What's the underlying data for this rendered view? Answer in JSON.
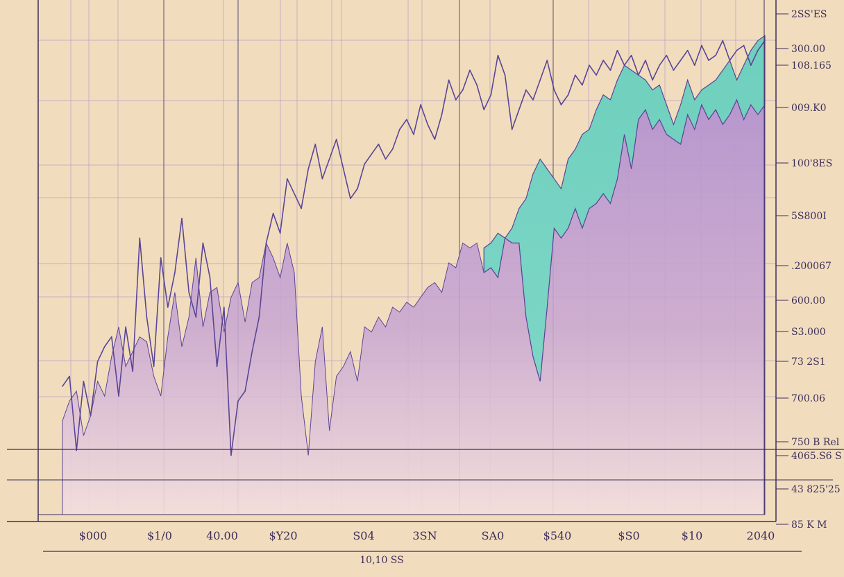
{
  "chart_data": {
    "type": "area",
    "title": "",
    "xlabel": "10,10 SS",
    "ylabel": "",
    "grid": true,
    "legend": "none",
    "colors": {
      "background": "#f1dcbe",
      "grid": "#b9a3c5",
      "axis": "#3c2e5a",
      "purple_area": "#b493cf",
      "pink_fade": "#f3dede",
      "teal_area": "#6fcfbd",
      "line": "#5a4596"
    },
    "y_tick_labels": [
      "2SS'ES",
      "300.00",
      "108.165",
      "009.K0",
      "100'8ES",
      "5S800I",
      ".200067",
      "600.00",
      "S3.000",
      "73 2S1",
      "700.06",
      "750 B Rel",
      "4065.S6 S",
      "43 825'25",
      "85 K M"
    ],
    "x_tick_labels": [
      "$000",
      "$1/0",
      "40.00",
      "$Y20",
      "S04",
      "3SN",
      "SA0",
      "$540",
      "$S0",
      "$10",
      "2040"
    ],
    "series": [
      {
        "name": "",
        "style": "area-purple",
        "x": [
          0,
          1,
          2,
          3,
          4,
          5,
          6,
          7,
          8,
          9,
          10,
          11,
          12,
          13,
          14,
          15,
          16,
          17,
          18,
          19,
          20,
          21,
          22,
          23,
          24,
          25,
          26,
          27,
          28,
          29,
          30,
          31,
          32,
          33,
          34,
          35,
          36,
          37,
          38,
          39,
          40,
          41,
          42,
          43,
          44,
          45,
          46,
          47,
          48,
          49,
          50,
          51,
          52,
          53,
          54,
          55,
          56,
          57,
          58,
          59,
          60,
          61,
          62,
          63,
          64,
          65,
          66,
          67,
          68,
          69,
          70,
          71,
          72,
          73,
          74,
          75,
          76,
          77,
          78,
          79,
          80,
          81,
          82,
          83,
          84,
          85,
          86,
          87,
          88,
          89,
          90,
          91,
          92,
          93,
          94,
          95,
          96,
          97,
          98,
          99,
          100
        ],
        "values": [
          19,
          23,
          25,
          16,
          20,
          27,
          24,
          32,
          38,
          30,
          33,
          36,
          35,
          28,
          24,
          36,
          45,
          34,
          40,
          52,
          38,
          45,
          46,
          37,
          44,
          47,
          39,
          47,
          48,
          55,
          52,
          48,
          55,
          49,
          24,
          12,
          31,
          38,
          17,
          28,
          30,
          33,
          27,
          38,
          37,
          40,
          38,
          42,
          41,
          43,
          42,
          44,
          46,
          47,
          45,
          51,
          50,
          55,
          54,
          55,
          49,
          50,
          48,
          56,
          55,
          55,
          40,
          32,
          27,
          42,
          58,
          56,
          58,
          62,
          58,
          62,
          63,
          65,
          63,
          68,
          77,
          70,
          80,
          82,
          78,
          80,
          77,
          76,
          75,
          81,
          78,
          83,
          80,
          82,
          79,
          81,
          84,
          80,
          83,
          81,
          83
        ]
      },
      {
        "name": "",
        "style": "area-teal",
        "x": [
          60,
          61,
          62,
          63,
          64,
          65,
          66,
          67,
          68,
          69,
          70,
          71,
          72,
          73,
          74,
          75,
          76,
          77,
          78,
          79,
          80,
          81,
          82,
          83,
          84,
          85,
          86,
          87,
          88,
          89,
          90,
          91,
          92,
          93,
          94,
          95,
          96,
          97,
          98,
          99,
          100
        ],
        "values": [
          54,
          55,
          57,
          56,
          58,
          62,
          64,
          69,
          72,
          70,
          68,
          66,
          72,
          74,
          77,
          78,
          82,
          85,
          84,
          88,
          91,
          90,
          89,
          88,
          86,
          87,
          83,
          79,
          83,
          88,
          84,
          86,
          87,
          88,
          90,
          92,
          88,
          91,
          94,
          96,
          97
        ]
      },
      {
        "name": "",
        "style": "line",
        "x": [
          0,
          1,
          2,
          3,
          4,
          5,
          6,
          7,
          8,
          9,
          10,
          11,
          12,
          13,
          14,
          15,
          16,
          17,
          18,
          19,
          20,
          21,
          22,
          23,
          24,
          25,
          26,
          27,
          28,
          29,
          30,
          31,
          32,
          33,
          34,
          35,
          36,
          37,
          38,
          39,
          40,
          41,
          42,
          43,
          44,
          45,
          46,
          47,
          48,
          49,
          50,
          51,
          52,
          53,
          54,
          55,
          56,
          57,
          58,
          59,
          60,
          61,
          62,
          63,
          64,
          65,
          66,
          67,
          68,
          69,
          70,
          71,
          72,
          73,
          74,
          75,
          76,
          77,
          78,
          79,
          80,
          81,
          82,
          83,
          84,
          85,
          86,
          87,
          88,
          89,
          90,
          91,
          92,
          93,
          94,
          95,
          96,
          97,
          98,
          99,
          100
        ],
        "values": [
          26,
          28,
          13,
          27,
          20,
          31,
          34,
          36,
          24,
          38,
          29,
          56,
          40,
          30,
          52,
          42,
          49,
          60,
          45,
          40,
          55,
          48,
          30,
          42,
          12,
          23,
          25,
          33,
          40,
          55,
          61,
          57,
          68,
          65,
          62,
          70,
          75,
          68,
          72,
          76,
          70,
          64,
          66,
          71,
          73,
          75,
          72,
          74,
          78,
          80,
          77,
          83,
          79,
          76,
          81,
          88,
          84,
          86,
          90,
          87,
          82,
          85,
          93,
          89,
          78,
          82,
          86,
          84,
          88,
          92,
          86,
          83,
          85,
          89,
          87,
          91,
          89,
          92,
          90,
          94,
          91,
          93,
          89,
          92,
          88,
          91,
          93,
          90,
          92,
          94,
          91,
          95,
          92,
          93,
          96,
          92,
          94,
          95,
          91,
          94,
          96
        ]
      }
    ]
  }
}
